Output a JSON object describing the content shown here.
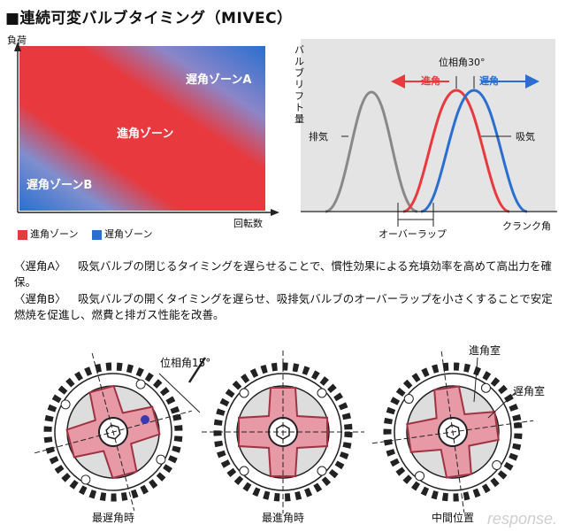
{
  "title": "■連続可変バルブタイミング（MIVEC）",
  "zone_chart": {
    "y_axis_label": "負荷",
    "x_axis_label": "回転数",
    "zone_retard_a": "遅角ゾーンA",
    "zone_advance": "進角ゾーン",
    "zone_retard_b": "遅角ゾーンB",
    "legend_red": "進角ゾーン",
    "legend_blue": "遅角ゾーン",
    "red_color": "#e8393e",
    "blue_color": "#2a6fd0"
  },
  "lift_chart": {
    "y_axis_label": "バルブリフト量",
    "x_axis_label": "クランク角",
    "exhaust_label": "排気",
    "intake_label": "吸気",
    "phase_label": "位相角30°",
    "advance_label": "進角",
    "retard_label": "遅角",
    "overlap_label": "オーバーラップ"
  },
  "descriptions": [
    {
      "tag": "〈遅角A〉",
      "text": "吸気バルブの閉じるタイミングを遅らせることで、慣性効果による充填効率を高めて高出力を確保。"
    },
    {
      "tag": "〈遅角B〉",
      "text": "吸気バルブの開くタイミングを遅らせ、吸排気バルブのオーバーラップを小さくすることで安定燃焼を促進し、燃費と排ガス性能を改善。"
    }
  ],
  "sprockets": {
    "phase_label": "位相角15°",
    "advance_chamber": "進角室",
    "retard_chamber": "遅角室",
    "captions": [
      "最遅角時",
      "最進角時",
      "中間位置"
    ]
  },
  "watermark": "response."
}
